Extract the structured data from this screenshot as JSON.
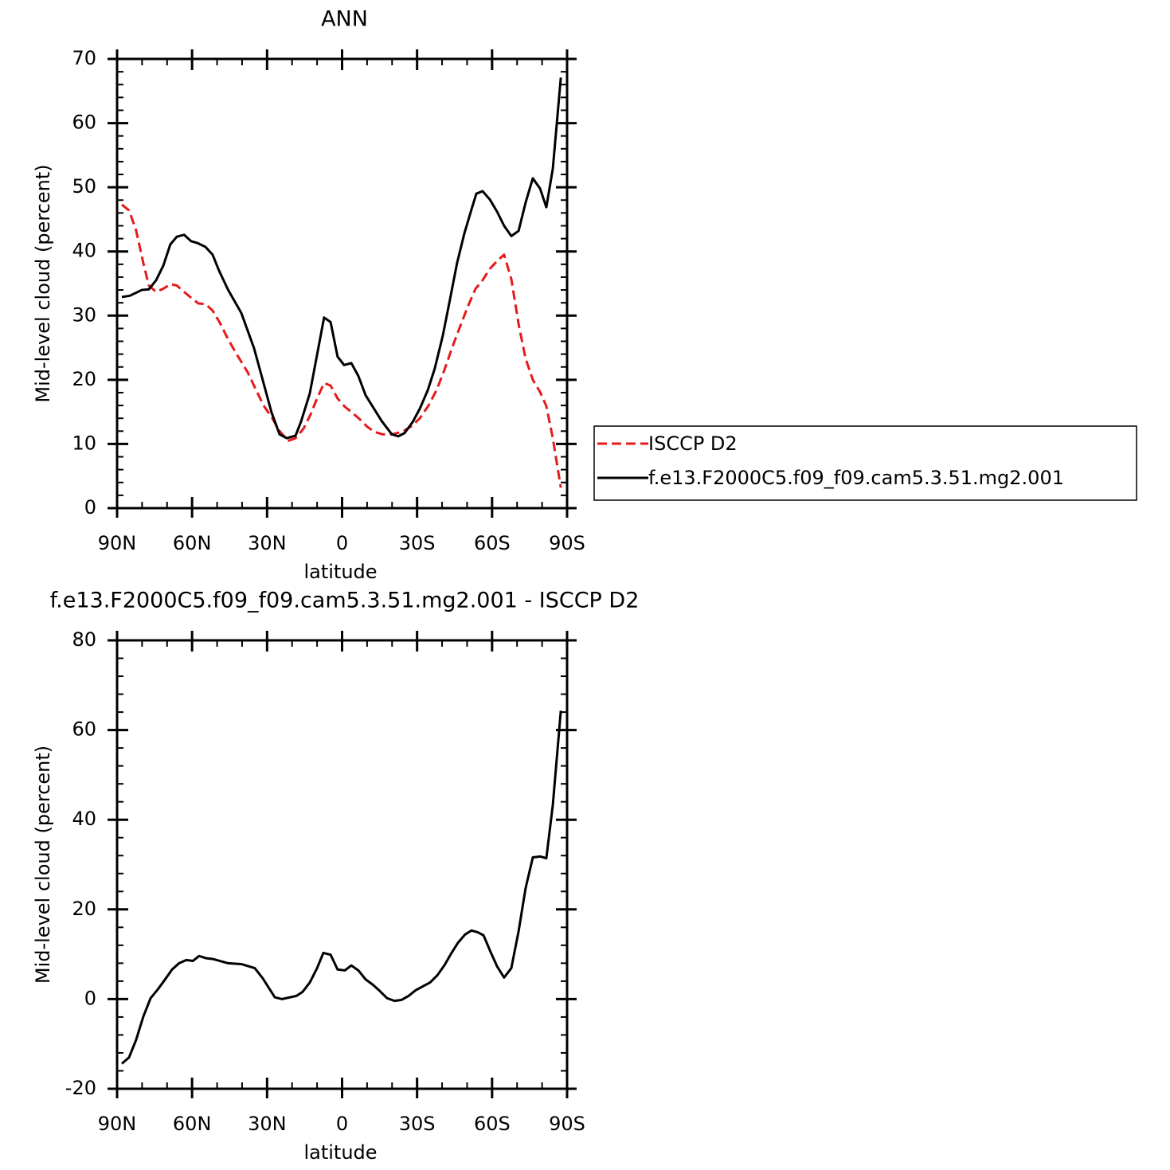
{
  "chart_data": [
    {
      "type": "line",
      "title": "ANN",
      "xlabel": "latitude",
      "ylabel": "Mid-level cloud (percent)",
      "xlim": [
        90,
        -90
      ],
      "ylim": [
        0,
        70
      ],
      "xticks": [
        {
          "value": 90,
          "label": "90N"
        },
        {
          "value": 60,
          "label": "60N"
        },
        {
          "value": 30,
          "label": "30N"
        },
        0,
        {
          "value": -30,
          "label": "30S"
        },
        {
          "value": -60,
          "label": "60S"
        },
        {
          "value": -90,
          "label": "90S"
        }
      ],
      "yticks": [
        0,
        10,
        20,
        30,
        40,
        50,
        60,
        70
      ],
      "legend": "right",
      "series": [
        {
          "name": "ISCCP D2",
          "color": "#e41a1c",
          "dashed": true,
          "x": [
            88.1,
            85.2,
            82.4,
            79.5,
            77.3,
            74.4,
            71.5,
            68.7,
            66.1,
            63.2,
            60.4,
            57.5,
            54.6,
            51.8,
            48.9,
            45.7,
            42.5,
            37.8,
            33.9,
            31.4,
            27.9,
            25.0,
            21.5,
            18.6,
            15.4,
            12.6,
            10.0,
            7.2,
            4.6,
            1.8,
            -1.1,
            -4.0,
            -7.2,
            -10.0,
            -12.9,
            -16.1,
            -19.9,
            -24.1,
            -27.9,
            -31.1,
            -34.6,
            -37.8,
            -40.9,
            -44.1,
            -47.3,
            -50.5,
            -53.4,
            -56.2,
            -59.1,
            -62.0,
            -64.8,
            -67.7,
            -70.6,
            -73.4,
            -76.3,
            -79.2,
            -81.7,
            -84.3,
            -87.5
          ],
          "values": [
            47.3,
            46.4,
            43.3,
            38.2,
            34.7,
            33.7,
            34.2,
            34.9,
            34.7,
            33.7,
            32.8,
            31.9,
            31.8,
            30.8,
            28.9,
            26.4,
            24.2,
            21.2,
            18.0,
            16.0,
            14.0,
            12.0,
            10.5,
            10.9,
            12.4,
            14.6,
            17.1,
            19.5,
            19.1,
            17.1,
            15.8,
            14.9,
            13.8,
            12.7,
            11.9,
            11.5,
            11.5,
            11.9,
            12.8,
            14.0,
            16.0,
            18.4,
            21.5,
            25.1,
            28.4,
            31.6,
            34.2,
            35.5,
            37.3,
            38.5,
            39.5,
            35.7,
            28.7,
            23.3,
            20.0,
            18.1,
            15.9,
            10.9,
            3.2
          ]
        },
        {
          "name": "f.e13.F2000C5.f09_f09.cam5.3.51.mg2.001",
          "color": "#000000",
          "dashed": false,
          "x": [
            88.1,
            84.9,
            80.1,
            77.3,
            74.4,
            71.5,
            68.7,
            66.1,
            63.2,
            60.4,
            57.8,
            54.6,
            51.8,
            49.2,
            45.7,
            40.3,
            35.2,
            31.7,
            28.2,
            25.0,
            22.1,
            18.6,
            16.4,
            12.9,
            7.2,
            4.6,
            1.8,
            -0.8,
            -3.7,
            -6.5,
            -9.4,
            -15.8,
            -19.9,
            -22.5,
            -25.0,
            -28.2,
            -31.1,
            -34.3,
            -37.1,
            -40.3,
            -43.2,
            -46.0,
            -48.9,
            -51.8,
            -53.7,
            -56.2,
            -59.1,
            -62.0,
            -64.8,
            -67.7,
            -70.6,
            -73.4,
            -76.3,
            -79.2,
            -81.7,
            -84.3,
            -87.5
          ],
          "values": [
            32.9,
            33.1,
            34.0,
            34.1,
            35.5,
            37.8,
            41.1,
            42.3,
            42.6,
            41.6,
            41.3,
            40.7,
            39.5,
            37.0,
            34.1,
            30.4,
            24.9,
            19.9,
            14.9,
            11.5,
            10.9,
            11.3,
            13.5,
            17.9,
            29.7,
            29.0,
            23.6,
            22.3,
            22.6,
            20.6,
            17.6,
            13.6,
            11.5,
            11.2,
            11.7,
            13.4,
            15.5,
            18.4,
            21.8,
            26.9,
            32.6,
            38.2,
            42.8,
            46.6,
            49.0,
            49.4,
            48.1,
            46.2,
            44.0,
            42.4,
            43.2,
            47.6,
            51.4,
            49.8,
            46.9,
            52.9,
            67.1
          ]
        }
      ]
    },
    {
      "type": "line",
      "title": "f.e13.F2000C5.f09_f09.cam5.3.51.mg2.001 - ISCCP D2",
      "xlabel": "latitude",
      "ylabel": "Mid-level cloud (percent)",
      "xlim": [
        90,
        -90
      ],
      "ylim": [
        -20,
        80
      ],
      "xticks": [
        {
          "value": 90,
          "label": "90N"
        },
        {
          "value": 60,
          "label": "60N"
        },
        {
          "value": 30,
          "label": "30N"
        },
        0,
        {
          "value": -30,
          "label": "30S"
        },
        {
          "value": -60,
          "label": "60S"
        },
        {
          "value": -90,
          "label": "90S"
        }
      ],
      "yticks": [
        -20,
        0,
        20,
        40,
        60,
        80
      ],
      "color": "#000000",
      "x": [
        88.1,
        85.2,
        82.4,
        79.5,
        76.6,
        73.8,
        70.9,
        68.0,
        65.2,
        62.3,
        59.7,
        57.2,
        54.3,
        51.4,
        45.7,
        40.3,
        34.9,
        31.7,
        26.9,
        24.0,
        18.3,
        15.8,
        12.9,
        10.0,
        7.5,
        4.6,
        1.8,
        -1.1,
        -3.7,
        -6.5,
        -9.4,
        -12.3,
        -15.1,
        -18.0,
        -20.9,
        -23.7,
        -26.6,
        -29.5,
        -35.2,
        -38.1,
        -41.0,
        -43.8,
        -46.4,
        -49.2,
        -51.8,
        -54.3,
        -56.6,
        -59.4,
        -62.0,
        -64.8,
        -67.7,
        -70.6,
        -73.4,
        -76.3,
        -79.2,
        -81.7,
        -84.3,
        -87.5
      ],
      "values": [
        -14.4,
        -13.0,
        -9.1,
        -3.9,
        0.2,
        2.1,
        4.3,
        6.6,
        8.0,
        8.7,
        8.5,
        9.6,
        9.1,
        8.9,
        8.0,
        7.8,
        6.9,
        4.6,
        0.4,
        0.0,
        0.7,
        1.6,
        3.7,
        6.9,
        10.3,
        9.9,
        6.6,
        6.4,
        7.5,
        6.4,
        4.4,
        3.2,
        1.8,
        0.2,
        -0.4,
        -0.2,
        0.7,
        2.0,
        3.7,
        5.3,
        7.6,
        10.3,
        12.6,
        14.4,
        15.3,
        14.9,
        14.2,
        10.5,
        7.3,
        4.8,
        6.9,
        15.1,
        24.7,
        31.6,
        31.8,
        31.4,
        43.3,
        64.3
      ]
    }
  ]
}
